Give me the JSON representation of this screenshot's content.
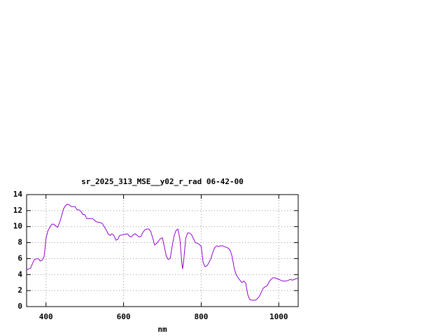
{
  "chart_data": {
    "type": "line",
    "title": "sr_2025_313_MSE__y02_r_rad 06-42-00",
    "x_label": "nm",
    "x": [
      350,
      360,
      370,
      380,
      385,
      390,
      395,
      400,
      405,
      410,
      415,
      420,
      425,
      430,
      435,
      440,
      445,
      450,
      455,
      460,
      465,
      470,
      475,
      480,
      485,
      490,
      495,
      500,
      505,
      510,
      520,
      530,
      540,
      545,
      550,
      555,
      560,
      565,
      570,
      575,
      580,
      585,
      590,
      600,
      610,
      615,
      620,
      625,
      630,
      635,
      640,
      645,
      650,
      655,
      660,
      665,
      670,
      675,
      680,
      685,
      690,
      695,
      700,
      705,
      710,
      715,
      720,
      725,
      730,
      735,
      740,
      745,
      750,
      752,
      755,
      760,
      765,
      770,
      775,
      780,
      785,
      790,
      795,
      800,
      805,
      810,
      815,
      820,
      825,
      830,
      835,
      840,
      845,
      850,
      855,
      860,
      865,
      870,
      875,
      880,
      885,
      890,
      895,
      900,
      905,
      910,
      915,
      920,
      925,
      930,
      935,
      940,
      945,
      950,
      955,
      960,
      965,
      970,
      975,
      980,
      985,
      990,
      995,
      1000,
      1005,
      1010,
      1015,
      1020,
      1025,
      1030,
      1035,
      1040,
      1045,
      1050
    ],
    "values": [
      4.6,
      4.8,
      5.9,
      6.0,
      5.7,
      5.8,
      6.2,
      8.5,
      9.5,
      9.9,
      10.3,
      10.3,
      10.1,
      9.9,
      10.5,
      11.3,
      12.2,
      12.6,
      12.8,
      12.7,
      12.5,
      12.5,
      12.5,
      12.1,
      12.1,
      11.9,
      11.5,
      11.5,
      11.0,
      11.0,
      11.0,
      10.6,
      10.5,
      10.4,
      10.0,
      9.6,
      9.1,
      8.9,
      9.1,
      8.9,
      8.3,
      8.4,
      8.9,
      9.0,
      9.1,
      8.8,
      8.7,
      9.0,
      9.1,
      8.9,
      8.7,
      8.8,
      9.3,
      9.6,
      9.7,
      9.7,
      9.4,
      8.6,
      7.7,
      7.9,
      8.2,
      8.5,
      8.6,
      7.5,
      6.3,
      5.9,
      6.0,
      7.5,
      8.8,
      9.5,
      9.7,
      8.5,
      5.5,
      4.7,
      5.8,
      8.5,
      9.2,
      9.2,
      9.0,
      8.5,
      8.0,
      7.9,
      7.8,
      7.5,
      5.5,
      5.0,
      5.1,
      5.5,
      6.0,
      6.8,
      7.4,
      7.6,
      7.5,
      7.6,
      7.6,
      7.5,
      7.4,
      7.3,
      7.0,
      6.2,
      4.8,
      4.0,
      3.6,
      3.3,
      3.0,
      3.2,
      2.9,
      1.5,
      0.9,
      0.8,
      0.8,
      0.8,
      1.0,
      1.3,
      1.8,
      2.3,
      2.5,
      2.6,
      3.1,
      3.4,
      3.6,
      3.6,
      3.5,
      3.4,
      3.3,
      3.2,
      3.2,
      3.2,
      3.3,
      3.4,
      3.3,
      3.4,
      3.5,
      3.5
    ],
    "color": "#9400d3",
    "xlim": [
      350,
      1050
    ],
    "xticks": [
      400,
      600,
      800,
      1000
    ],
    "ylim": [
      0,
      14
    ],
    "yticks": [
      0,
      2,
      4,
      6,
      8,
      10,
      12,
      14
    ],
    "grid": true
  }
}
